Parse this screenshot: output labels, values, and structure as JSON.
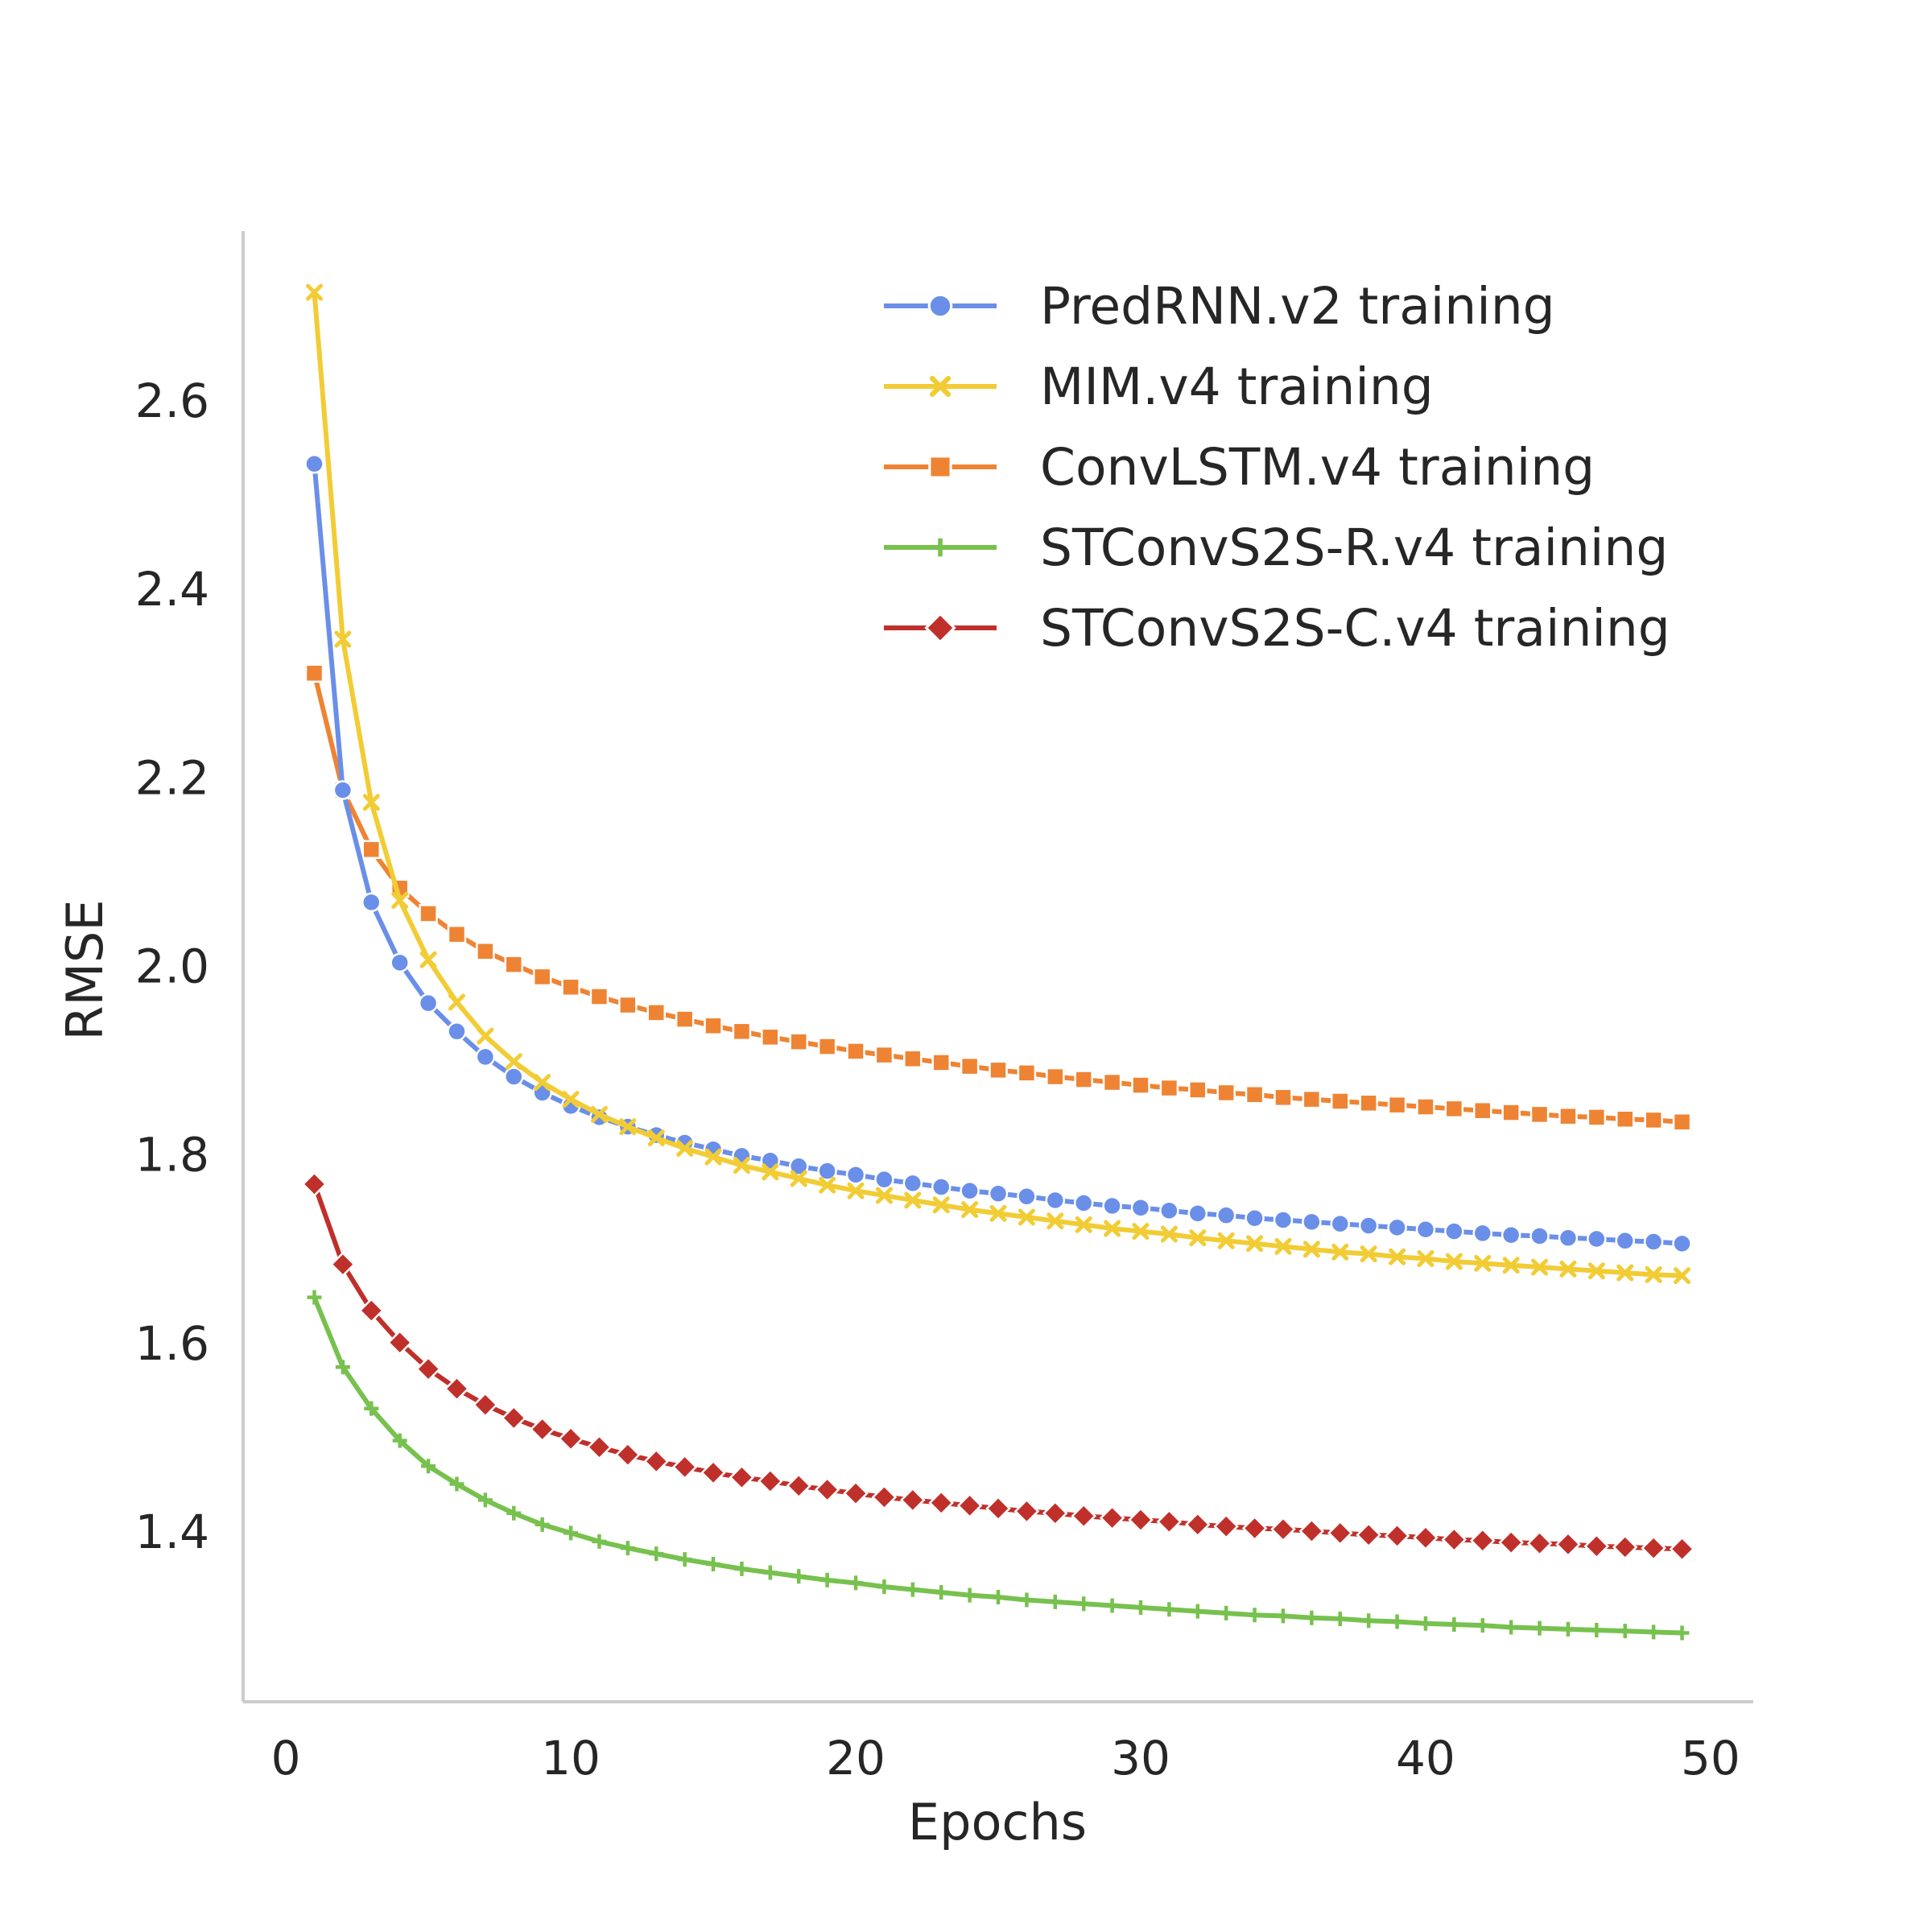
{
  "chart_data": {
    "type": "line",
    "xlabel": "Epochs",
    "ylabel": "RMSE",
    "xlim": [
      -1.5,
      51.5
    ],
    "ylim": [
      1.22,
      2.78
    ],
    "xticks": [
      0,
      10,
      20,
      30,
      40,
      50
    ],
    "yticks": [
      1.4,
      1.6,
      1.8,
      2.0,
      2.2,
      2.4,
      2.6
    ],
    "xtick_labels": [
      "0",
      "10",
      "20",
      "30",
      "40",
      "50"
    ],
    "ytick_labels": [
      "1.4",
      "1.6",
      "1.8",
      "2.0",
      "2.2",
      "2.4",
      "2.6"
    ],
    "grid": false,
    "legend_position": "top-right",
    "x_start": 1,
    "series": [
      {
        "name": "PredRNN.v2 training",
        "color": "#6a8fe8",
        "marker": "circle",
        "values": [
          2.533,
          2.187,
          2.068,
          2.004,
          1.961,
          1.931,
          1.904,
          1.883,
          1.866,
          1.852,
          1.84,
          1.83,
          1.821,
          1.813,
          1.806,
          1.799,
          1.794,
          1.788,
          1.783,
          1.779,
          1.774,
          1.77,
          1.766,
          1.762,
          1.759,
          1.756,
          1.752,
          1.749,
          1.746,
          1.744,
          1.741,
          1.738,
          1.736,
          1.733,
          1.731,
          1.729,
          1.727,
          1.725,
          1.723,
          1.721,
          1.719,
          1.717,
          1.715,
          1.714,
          1.712,
          1.711,
          1.709,
          1.708,
          1.706
        ]
      },
      {
        "name": "MIM.v4 training",
        "color": "#f2cc35",
        "marker": "x",
        "values": [
          2.715,
          2.347,
          2.174,
          2.07,
          2.007,
          1.962,
          1.926,
          1.899,
          1.877,
          1.859,
          1.843,
          1.83,
          1.818,
          1.807,
          1.798,
          1.789,
          1.782,
          1.775,
          1.768,
          1.762,
          1.757,
          1.752,
          1.747,
          1.742,
          1.738,
          1.734,
          1.73,
          1.726,
          1.722,
          1.719,
          1.716,
          1.712,
          1.709,
          1.706,
          1.703,
          1.7,
          1.697,
          1.695,
          1.692,
          1.69,
          1.687,
          1.685,
          1.683,
          1.681,
          1.679,
          1.677,
          1.675,
          1.673,
          1.672
        ]
      },
      {
        "name": "ConvLSTM.v4 training",
        "color": "#ee8433",
        "marker": "square",
        "values": [
          2.311,
          2.187,
          2.124,
          2.083,
          2.056,
          2.034,
          2.016,
          2.002,
          1.989,
          1.978,
          1.968,
          1.959,
          1.951,
          1.944,
          1.937,
          1.931,
          1.925,
          1.92,
          1.915,
          1.91,
          1.906,
          1.902,
          1.898,
          1.894,
          1.89,
          1.887,
          1.883,
          1.88,
          1.877,
          1.874,
          1.871,
          1.869,
          1.866,
          1.864,
          1.861,
          1.859,
          1.857,
          1.855,
          1.853,
          1.851,
          1.849,
          1.847,
          1.845,
          1.843,
          1.841,
          1.84,
          1.838,
          1.837,
          1.835
        ]
      },
      {
        "name": "STConvS2S-R.v4 training",
        "color": "#77c14e",
        "marker": "plus",
        "values": [
          1.649,
          1.575,
          1.531,
          1.497,
          1.47,
          1.451,
          1.434,
          1.42,
          1.408,
          1.399,
          1.39,
          1.383,
          1.377,
          1.371,
          1.366,
          1.361,
          1.357,
          1.353,
          1.349,
          1.346,
          1.342,
          1.339,
          1.336,
          1.333,
          1.331,
          1.328,
          1.326,
          1.324,
          1.322,
          1.32,
          1.318,
          1.316,
          1.314,
          1.312,
          1.311,
          1.309,
          1.308,
          1.306,
          1.305,
          1.303,
          1.302,
          1.301,
          1.299,
          1.298,
          1.297,
          1.296,
          1.295,
          1.294,
          1.293
        ]
      },
      {
        "name": "STConvS2S-C.v4 training",
        "color": "#c0302b",
        "marker": "diamond",
        "values": [
          1.769,
          1.684,
          1.635,
          1.601,
          1.573,
          1.552,
          1.535,
          1.521,
          1.509,
          1.499,
          1.49,
          1.482,
          1.475,
          1.469,
          1.463,
          1.458,
          1.454,
          1.449,
          1.445,
          1.441,
          1.437,
          1.434,
          1.431,
          1.428,
          1.425,
          1.422,
          1.42,
          1.417,
          1.415,
          1.413,
          1.411,
          1.408,
          1.406,
          1.404,
          1.403,
          1.401,
          1.399,
          1.397,
          1.396,
          1.394,
          1.392,
          1.391,
          1.389,
          1.388,
          1.387,
          1.385,
          1.384,
          1.383,
          1.382
        ]
      }
    ]
  }
}
